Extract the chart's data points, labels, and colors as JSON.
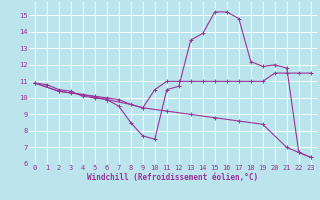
{
  "title": "",
  "xlabel": "Windchill (Refroidissement éolien,°C)",
  "ylabel": "",
  "xlim": [
    -0.5,
    23.5
  ],
  "ylim": [
    6,
    15.8
  ],
  "yticks": [
    6,
    7,
    8,
    9,
    10,
    11,
    12,
    13,
    14,
    15
  ],
  "xticks": [
    0,
    1,
    2,
    3,
    4,
    5,
    6,
    7,
    8,
    9,
    10,
    11,
    12,
    13,
    14,
    15,
    16,
    17,
    18,
    19,
    20,
    21,
    22,
    23
  ],
  "background_color": "#bce4ec",
  "grid_color": "#ffffff",
  "line_color": "#993399",
  "series1": [
    [
      0,
      10.9
    ],
    [
      1,
      10.8
    ],
    [
      2,
      10.5
    ],
    [
      3,
      10.4
    ],
    [
      4,
      10.1
    ],
    [
      5,
      10.0
    ],
    [
      6,
      9.9
    ],
    [
      7,
      9.5
    ],
    [
      8,
      8.5
    ],
    [
      9,
      7.7
    ],
    [
      10,
      7.5
    ],
    [
      11,
      10.5
    ],
    [
      12,
      10.7
    ],
    [
      13,
      13.5
    ],
    [
      14,
      13.9
    ],
    [
      15,
      15.2
    ],
    [
      16,
      15.2
    ],
    [
      17,
      14.8
    ],
    [
      18,
      12.2
    ],
    [
      19,
      11.9
    ],
    [
      20,
      12.0
    ],
    [
      21,
      11.8
    ],
    [
      22,
      6.7
    ],
    [
      23,
      6.4
    ]
  ],
  "series2": [
    [
      0,
      10.9
    ],
    [
      2,
      10.4
    ],
    [
      3,
      10.3
    ],
    [
      4,
      10.2
    ],
    [
      5,
      10.1
    ],
    [
      6,
      10.0
    ],
    [
      7,
      9.9
    ],
    [
      8,
      9.6
    ],
    [
      9,
      9.4
    ],
    [
      10,
      10.5
    ],
    [
      11,
      11.0
    ],
    [
      12,
      11.0
    ],
    [
      13,
      11.0
    ],
    [
      14,
      11.0
    ],
    [
      15,
      11.0
    ],
    [
      16,
      11.0
    ],
    [
      17,
      11.0
    ],
    [
      18,
      11.0
    ],
    [
      19,
      11.0
    ],
    [
      20,
      11.5
    ],
    [
      21,
      11.5
    ],
    [
      22,
      11.5
    ],
    [
      23,
      11.5
    ]
  ],
  "series3": [
    [
      0,
      10.9
    ],
    [
      2,
      10.4
    ],
    [
      4,
      10.2
    ],
    [
      6,
      9.9
    ],
    [
      8,
      9.6
    ],
    [
      9,
      9.4
    ],
    [
      11,
      9.2
    ],
    [
      13,
      9.0
    ],
    [
      15,
      8.8
    ],
    [
      17,
      8.6
    ],
    [
      19,
      8.4
    ],
    [
      21,
      7.0
    ],
    [
      22,
      6.7
    ],
    [
      23,
      6.4
    ]
  ]
}
